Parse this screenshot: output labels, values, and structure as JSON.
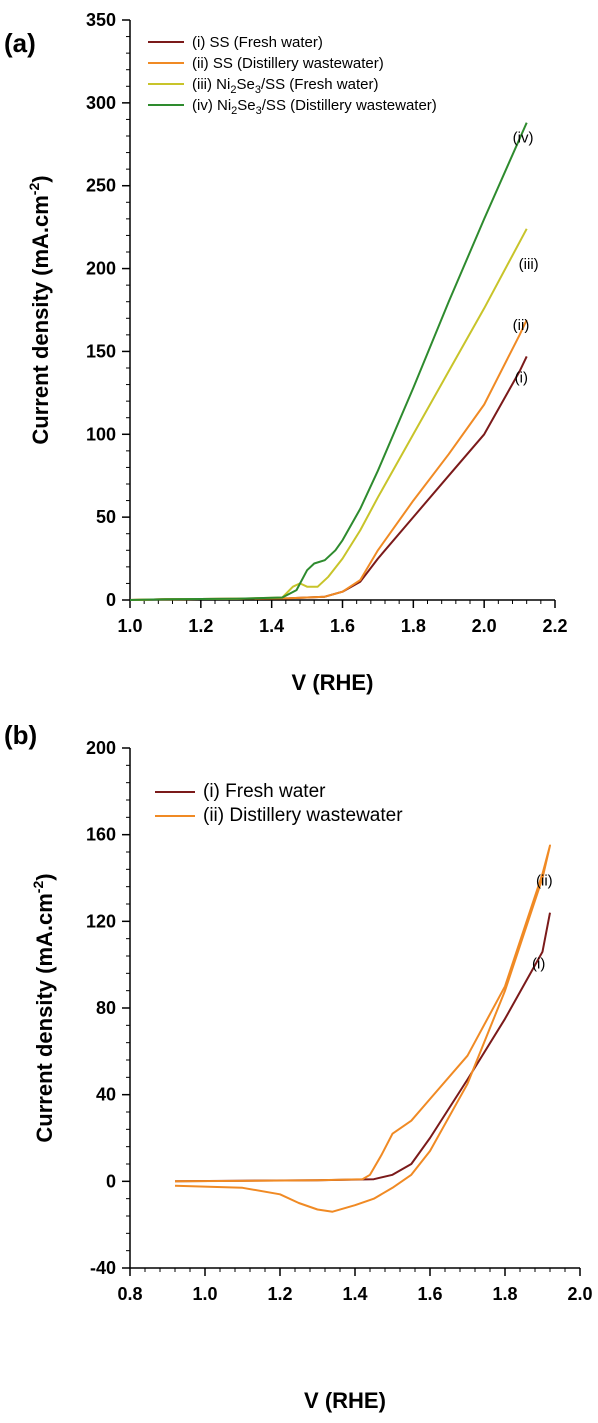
{
  "chart_data": [
    {
      "panel": "(a)",
      "type": "line",
      "xlabel": "V (RHE)",
      "ylabel": "Current density (mA.cm",
      "ylabel_sup": "-2",
      "ylabel_end": ")",
      "xlim": [
        1.0,
        2.2
      ],
      "ylim": [
        0,
        350
      ],
      "xticks": [
        1.0,
        1.2,
        1.4,
        1.6,
        1.8,
        2.0,
        2.2
      ],
      "xtick_labels": [
        "1.0",
        "1.2",
        "1.4",
        "1.6",
        "1.8",
        "2.0",
        "2.2"
      ],
      "yticks": [
        0,
        50,
        100,
        150,
        200,
        250,
        300,
        350
      ],
      "ytick_labels": [
        "0",
        "50",
        "100",
        "150",
        "200",
        "250",
        "300",
        "350"
      ],
      "legend_position": "top-left",
      "series": [
        {
          "name": "(i) SS (Fresh water)",
          "legend_parts": [
            {
              "t": "(i) SS (Fresh water)"
            }
          ],
          "end_label": "(i)",
          "color": "#7b1a1a",
          "points": [
            [
              1.0,
              0
            ],
            [
              1.1,
              0.5
            ],
            [
              1.3,
              0.8
            ],
            [
              1.45,
              1
            ],
            [
              1.55,
              2
            ],
            [
              1.6,
              5
            ],
            [
              1.65,
              11
            ],
            [
              1.7,
              25
            ],
            [
              1.8,
              50
            ],
            [
              1.9,
              75
            ],
            [
              2.0,
              100
            ],
            [
              2.1,
              138
            ],
            [
              2.12,
              147
            ]
          ]
        },
        {
          "name": "(ii) SS (Distillery wastewater)",
          "legend_parts": [
            {
              "t": "(ii) SS (Distillery wastewater)"
            }
          ],
          "end_label": "(ii)",
          "color": "#f08a24",
          "points": [
            [
              1.0,
              0
            ],
            [
              1.1,
              0.5
            ],
            [
              1.3,
              0.8
            ],
            [
              1.45,
              1
            ],
            [
              1.55,
              2
            ],
            [
              1.6,
              5
            ],
            [
              1.65,
              12
            ],
            [
              1.7,
              30
            ],
            [
              1.8,
              60
            ],
            [
              1.9,
              88
            ],
            [
              2.0,
              118
            ],
            [
              2.1,
              160
            ],
            [
              2.12,
              169
            ]
          ]
        },
        {
          "name": "(iii) Ni2Se3/SS (Fresh water)",
          "legend_parts": [
            {
              "t": "(iii) Ni"
            },
            {
              "t": "2",
              "sub": true
            },
            {
              "t": "Se"
            },
            {
              "t": "3",
              "sub": true
            },
            {
              "t": "/SS (Fresh water)"
            }
          ],
          "end_label": "(iii)",
          "color": "#c8c42a",
          "points": [
            [
              1.0,
              0
            ],
            [
              1.1,
              0.5
            ],
            [
              1.3,
              0.8
            ],
            [
              1.43,
              1.5
            ],
            [
              1.46,
              8
            ],
            [
              1.48,
              10
            ],
            [
              1.5,
              8
            ],
            [
              1.53,
              8
            ],
            [
              1.56,
              14
            ],
            [
              1.6,
              25
            ],
            [
              1.65,
              42
            ],
            [
              1.7,
              62
            ],
            [
              1.8,
              100
            ],
            [
              1.9,
              138
            ],
            [
              2.0,
              176
            ],
            [
              2.12,
              224
            ]
          ]
        },
        {
          "name": "(iv) Ni2Se3/SS (Distillery wastewater)",
          "legend_parts": [
            {
              "t": "(iv) Ni"
            },
            {
              "t": "2",
              "sub": true
            },
            {
              "t": "Se"
            },
            {
              "t": "3",
              "sub": true
            },
            {
              "t": "/SS (Distillery wastewater)"
            }
          ],
          "end_label": "(iv)",
          "color": "#2e8b2e",
          "points": [
            [
              1.0,
              0
            ],
            [
              1.1,
              0.5
            ],
            [
              1.3,
              0.8
            ],
            [
              1.43,
              1.5
            ],
            [
              1.47,
              6
            ],
            [
              1.5,
              18
            ],
            [
              1.52,
              22
            ],
            [
              1.55,
              24
            ],
            [
              1.58,
              30
            ],
            [
              1.6,
              36
            ],
            [
              1.65,
              55
            ],
            [
              1.7,
              78
            ],
            [
              1.8,
              128
            ],
            [
              1.9,
              180
            ],
            [
              2.0,
              230
            ],
            [
              2.12,
              288
            ]
          ]
        }
      ]
    },
    {
      "panel": "(b)",
      "type": "line",
      "xlabel": "V (RHE)",
      "ylabel": "Current density (mA.cm",
      "ylabel_sup": "-2",
      "ylabel_end": ")",
      "xlim": [
        0.8,
        2.0
      ],
      "ylim": [
        -40,
        200
      ],
      "xticks": [
        0.8,
        1.0,
        1.2,
        1.4,
        1.6,
        1.8,
        2.0
      ],
      "xtick_labels": [
        "0.8",
        "1.0",
        "1.2",
        "1.4",
        "1.6",
        "1.8",
        "2.0"
      ],
      "yticks": [
        -40,
        0,
        40,
        80,
        120,
        160,
        200
      ],
      "ytick_labels": [
        "-40",
        "0",
        "40",
        "80",
        "120",
        "160",
        "200"
      ],
      "legend_position": "top-left",
      "series": [
        {
          "name": "(i) Fresh water",
          "legend_parts": [
            {
              "t": "(i) Fresh water"
            }
          ],
          "end_label": "(i)",
          "color": "#7b1a1a",
          "points": [
            [
              0.92,
              0
            ],
            [
              1.1,
              0.3
            ],
            [
              1.3,
              0.5
            ],
            [
              1.45,
              1
            ],
            [
              1.5,
              3
            ],
            [
              1.55,
              8
            ],
            [
              1.6,
              20
            ],
            [
              1.7,
              47
            ],
            [
              1.8,
              75
            ],
            [
              1.9,
              106
            ],
            [
              1.92,
              124
            ]
          ]
        },
        {
          "name": "(ii) Distillery wastewater",
          "legend_parts": [
            {
              "t": "(ii) Distillery wastewater"
            }
          ],
          "end_label": "(ii)",
          "color": "#f08a24",
          "points": [
            [
              0.92,
              -2
            ],
            [
              1.1,
              -3
            ],
            [
              1.2,
              -6
            ],
            [
              1.25,
              -10
            ],
            [
              1.3,
              -13
            ],
            [
              1.34,
              -14
            ],
            [
              1.4,
              -11
            ],
            [
              1.45,
              -8
            ],
            [
              1.5,
              -3
            ],
            [
              1.55,
              3
            ],
            [
              1.6,
              14
            ],
            [
              1.7,
              45
            ],
            [
              1.8,
              88
            ],
            [
              1.9,
              140
            ],
            [
              1.92,
              155
            ],
            [
              1.9,
              142
            ],
            [
              1.8,
              90
            ],
            [
              1.7,
              58
            ],
            [
              1.6,
              38
            ],
            [
              1.55,
              28
            ],
            [
              1.5,
              22
            ],
            [
              1.47,
              12
            ],
            [
              1.44,
              3
            ],
            [
              1.42,
              1
            ],
            [
              1.3,
              0.5
            ],
            [
              1.1,
              0.2
            ],
            [
              0.92,
              0
            ]
          ]
        }
      ]
    }
  ]
}
